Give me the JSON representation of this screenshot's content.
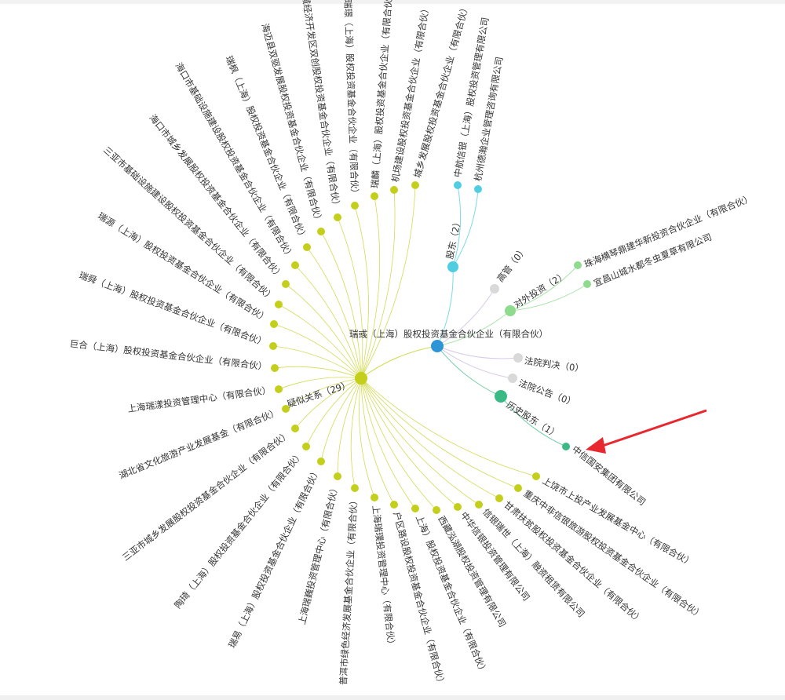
{
  "colors": {
    "center": "#2d95d6",
    "similar": "#c3cf1a",
    "shareholder": "#4fcde1",
    "investment": "#8edb8e",
    "empty": "#d9d9d9",
    "history": "#3bb984",
    "arrow": "#e8272f"
  },
  "center": {
    "label": "瑞彧（上海）股权投资基金合伙企业（有限合伙）"
  },
  "hubs": {
    "similar": {
      "label": "疑似关系（29）"
    },
    "shareholder": {
      "label": "股东（2）"
    },
    "executives": {
      "label": "高管（0）"
    },
    "investment": {
      "label": "对外投资（2）"
    },
    "judgment": {
      "label": "法院判决（0）"
    },
    "announcement": {
      "label": "法院公告（0）"
    },
    "history": {
      "label": "历史股东（1）"
    }
  },
  "shareholders": [
    "中航信银（上海）股权投资管理有限公司",
    "杭州德瀚企业管理咨询有限公司"
  ],
  "investments": [
    "珠海横琴鼎建华新投资合伙企业（有限合伙）",
    "宜昌山城水都冬虫夏草有限公司"
  ],
  "history_shareholders": [
    "中信国安集团有限公司"
  ],
  "similar": [
    "城乡发展股权投资基金合伙企业（有限合伙）",
    "机场建设股权投资基金合伙企业（有限合伙）",
    "瑞麟（上海）股权投资基金合伙企业（有限合伙）",
    "瑞璟（上海）股权投资基金合伙企业（有限合伙）",
    "海南老城经济开发区双创股权投资基金合伙企业（有限合伙）",
    "海迈县双驱发展股权投资基金合伙企业（有限合伙）",
    "瑞枫（上海）股权投资基金合伙企业（有限合伙）",
    "海口市基础设施建设股权投资基金合伙企业（有限合伙）",
    "海口市城乡发展股权投资基金合伙企业（有限合伙）",
    "三亚市基础设施建设股权投资基金合伙企业（有限合伙）",
    "瑞源（上海）股权投资基金合伙企业（有限合伙）",
    "瑞舜（上海）股权投资基金合伙企业（有限合伙）",
    "巨合（上海）股权投资基金合伙企业（有限合伙）",
    "上海瑞漾投资管理中心（有限合伙）",
    "湖北省文化旅游产业发展基金（有限合伙）",
    "三亚市城乡发展股权投资基金合伙企业（有限合伙）",
    "陶琦（上海）股权投资基金合伙企业（有限合伙）",
    "瑞易（上海）股权投资基金合伙企业（有限合伙）",
    "上海瑞巍投资管理中心（有限合伙）",
    "普洱市绿色经济发展基金合伙企业（有限合伙）",
    "上海瑞璞投资管理中心（有限合伙）",
    "户区路设股权投资基金合伙企业（有限合伙）",
    "上海）股权投资基金合伙企业（有限合伙）",
    "西藏泓湖股权投资管理有限公司",
    "中华信银投资管理有限公司",
    "信银瑞世（上海）融资租赁有限公司",
    "甘肃扶贫股权投资基金合伙企业（有限合伙）",
    "重庆中非信银旅游股权投资基金合伙企业（有限合伙）",
    "上饶市上投产业发展基金中心（有限合伙）"
  ]
}
